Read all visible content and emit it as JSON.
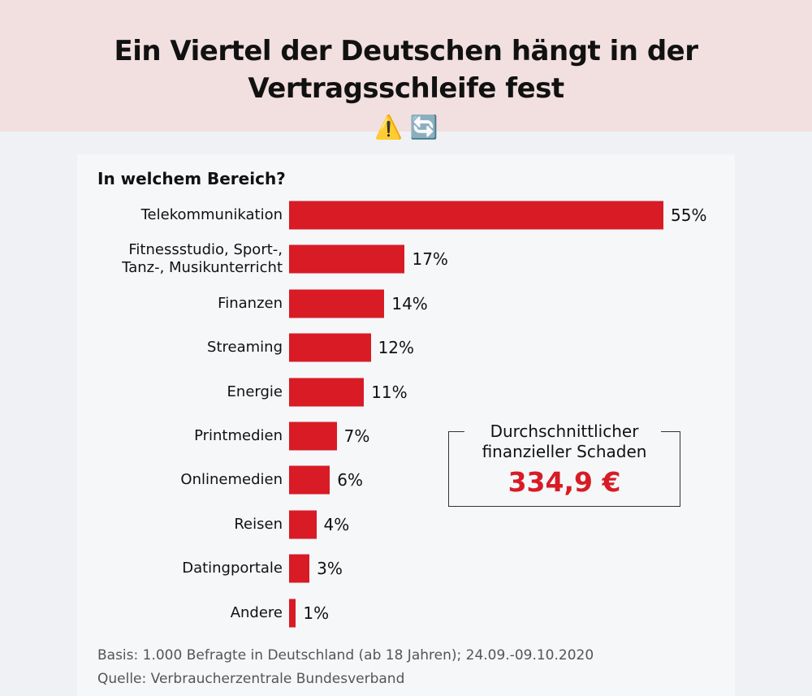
{
  "header": {
    "title": "Ein Viertel der Deutschen hängt in der Vertragsschleife fest",
    "emoji": "⚠️ 🔄"
  },
  "chart_data": {
    "type": "bar",
    "orientation": "horizontal",
    "title": "In welchem Bereich?",
    "categories": [
      "Telekommunikation",
      "Fitnessstudio, Sport-, Tanz-, Musikunterricht",
      "Finanzen",
      "Streaming",
      "Energie",
      "Printmedien",
      "Onlinemedien",
      "Reisen",
      "Datingportale",
      "Andere"
    ],
    "values": [
      55,
      17,
      14,
      12,
      11,
      7,
      6,
      4,
      3,
      1
    ],
    "value_labels": [
      "55%",
      "17%",
      "14%",
      "12%",
      "11%",
      "7%",
      "6%",
      "4%",
      "3%",
      "1%"
    ],
    "unit": "%",
    "bar_color": "#d81b25",
    "grid": false,
    "xlim": [
      0,
      55
    ]
  },
  "callout": {
    "label": "Durchschnittlicher finanzieller Schaden",
    "value": "334,9 €",
    "value_color": "#d81b25"
  },
  "footer": {
    "basis": "Basis: 1.000 Befragte in Deutschland (ab 18 Jahren); 24.09.-09.10.2020",
    "source": "Quelle: Verbraucherzentrale Bundesverband"
  }
}
